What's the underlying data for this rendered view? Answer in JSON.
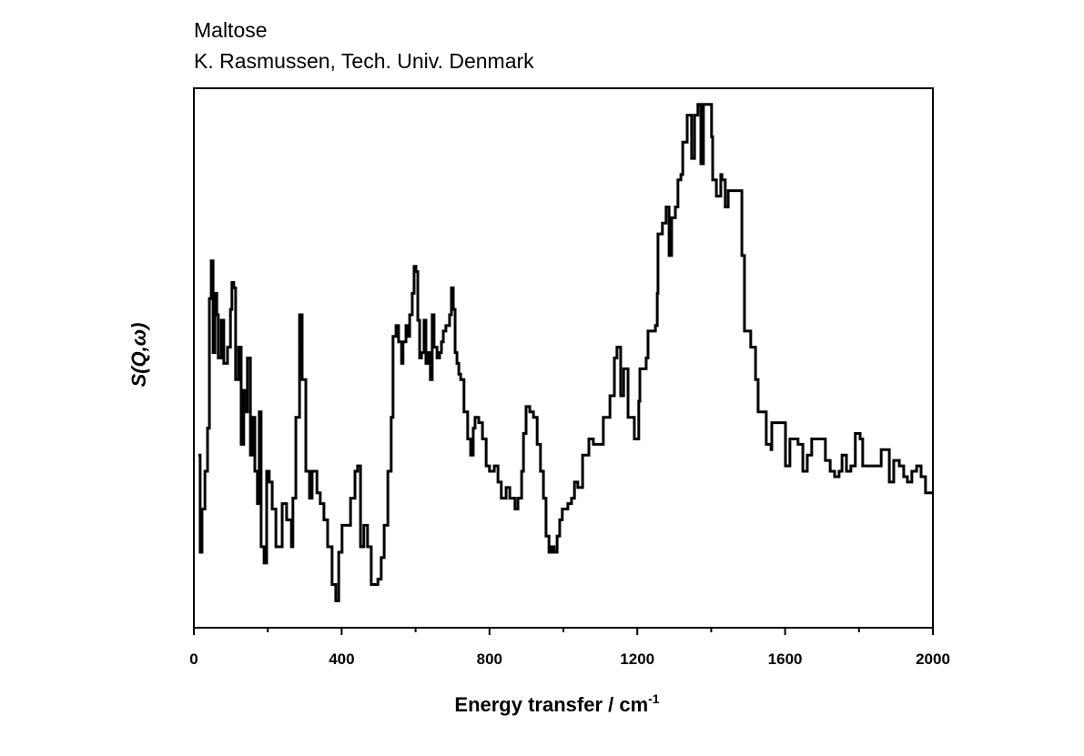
{
  "chart_data": {
    "type": "line",
    "title": "Maltose",
    "subtitle": "K. Rasmussen, Tech. Univ. Denmark",
    "xlabel": "Energy transfer / cm",
    "xlabel_superscript": "-1",
    "ylabel": "S(Q,ω)",
    "xlim": [
      0,
      2000
    ],
    "ylim": [
      0,
      100
    ],
    "xticks": [
      "0",
      "400",
      "800",
      "1200",
      "1600",
      "2000"
    ],
    "xtick_values": [
      0,
      400,
      800,
      1200,
      1600,
      2000
    ],
    "minor_xtick_values": [
      200,
      600,
      1000,
      1400,
      1800
    ],
    "grid": false,
    "series": [
      {
        "name": "Maltose",
        "color": "#000000",
        "points": [
          [
            12,
            32
          ],
          [
            17,
            14
          ],
          [
            22,
            22
          ],
          [
            30,
            29
          ],
          [
            37,
            37
          ],
          [
            42,
            61
          ],
          [
            47,
            68
          ],
          [
            52,
            51
          ],
          [
            57,
            62
          ],
          [
            62,
            58
          ],
          [
            66,
            50
          ],
          [
            74,
            57
          ],
          [
            81,
            49
          ],
          [
            91,
            52
          ],
          [
            99,
            59
          ],
          [
            103,
            64
          ],
          [
            108,
            63
          ],
          [
            113,
            46
          ],
          [
            121,
            52
          ],
          [
            128,
            34
          ],
          [
            135,
            44
          ],
          [
            140,
            40
          ],
          [
            145,
            50
          ],
          [
            153,
            32
          ],
          [
            160,
            39
          ],
          [
            165,
            29
          ],
          [
            172,
            23
          ],
          [
            177,
            40
          ],
          [
            182,
            15
          ],
          [
            190,
            12
          ],
          [
            197,
            29
          ],
          [
            204,
            27
          ],
          [
            212,
            22
          ],
          [
            222,
            15
          ],
          [
            229,
            15
          ],
          [
            239,
            23
          ],
          [
            251,
            20
          ],
          [
            264,
            15
          ],
          [
            268,
            24
          ],
          [
            276,
            39
          ],
          [
            286,
            58
          ],
          [
            293,
            46
          ],
          [
            303,
            29
          ],
          [
            313,
            24
          ],
          [
            320,
            29
          ],
          [
            333,
            25
          ],
          [
            342,
            23
          ],
          [
            352,
            20
          ],
          [
            362,
            15
          ],
          [
            374,
            8
          ],
          [
            384,
            5
          ],
          [
            392,
            14
          ],
          [
            401,
            19
          ],
          [
            411,
            19
          ],
          [
            424,
            24
          ],
          [
            436,
            29
          ],
          [
            443,
            30
          ],
          [
            451,
            15
          ],
          [
            460,
            19
          ],
          [
            470,
            15
          ],
          [
            480,
            8
          ],
          [
            490,
            8
          ],
          [
            498,
            9
          ],
          [
            507,
            13
          ],
          [
            515,
            19
          ],
          [
            525,
            29
          ],
          [
            534,
            39
          ],
          [
            539,
            54
          ],
          [
            547,
            56
          ],
          [
            554,
            53
          ],
          [
            562,
            49
          ],
          [
            566,
            53
          ],
          [
            574,
            56
          ],
          [
            579,
            54
          ],
          [
            584,
            58
          ],
          [
            591,
            62
          ],
          [
            596,
            67
          ],
          [
            601,
            66
          ],
          [
            606,
            57
          ],
          [
            611,
            50
          ],
          [
            616,
            51
          ],
          [
            623,
            57
          ],
          [
            628,
            49
          ],
          [
            633,
            51
          ],
          [
            640,
            46
          ],
          [
            645,
            58
          ],
          [
            650,
            52
          ],
          [
            658,
            50
          ],
          [
            665,
            51
          ],
          [
            670,
            53
          ],
          [
            675,
            55
          ],
          [
            682,
            56
          ],
          [
            692,
            58
          ],
          [
            697,
            63
          ],
          [
            702,
            59
          ],
          [
            707,
            51
          ],
          [
            712,
            49
          ],
          [
            717,
            47
          ],
          [
            722,
            46
          ],
          [
            731,
            40
          ],
          [
            741,
            35
          ],
          [
            749,
            32
          ],
          [
            756,
            37
          ],
          [
            761,
            39
          ],
          [
            771,
            38
          ],
          [
            781,
            35
          ],
          [
            791,
            30
          ],
          [
            800,
            29
          ],
          [
            813,
            30
          ],
          [
            823,
            27
          ],
          [
            832,
            24
          ],
          [
            845,
            26
          ],
          [
            855,
            24
          ],
          [
            862,
            24
          ],
          [
            869,
            22
          ],
          [
            877,
            24
          ],
          [
            887,
            29
          ],
          [
            892,
            36
          ],
          [
            899,
            41
          ],
          [
            909,
            40
          ],
          [
            919,
            39
          ],
          [
            929,
            34
          ],
          [
            938,
            29
          ],
          [
            946,
            24
          ],
          [
            953,
            17
          ],
          [
            961,
            14
          ],
          [
            968,
            15
          ],
          [
            975,
            14
          ],
          [
            983,
            17
          ],
          [
            990,
            20
          ],
          [
            997,
            22
          ],
          [
            1012,
            23
          ],
          [
            1022,
            24
          ],
          [
            1030,
            27
          ],
          [
            1039,
            26
          ],
          [
            1052,
            32
          ],
          [
            1069,
            35
          ],
          [
            1081,
            34
          ],
          [
            1108,
            39
          ],
          [
            1126,
            43
          ],
          [
            1138,
            50
          ],
          [
            1145,
            52
          ],
          [
            1155,
            43
          ],
          [
            1163,
            48
          ],
          [
            1175,
            39
          ],
          [
            1192,
            35
          ],
          [
            1204,
            42
          ],
          [
            1207,
            48
          ],
          [
            1224,
            50
          ],
          [
            1229,
            55
          ],
          [
            1249,
            56
          ],
          [
            1254,
            62
          ],
          [
            1256,
            73
          ],
          [
            1268,
            75
          ],
          [
            1278,
            78
          ],
          [
            1286,
            69
          ],
          [
            1293,
            76
          ],
          [
            1303,
            78
          ],
          [
            1310,
            83
          ],
          [
            1318,
            84
          ],
          [
            1323,
            90
          ],
          [
            1335,
            95
          ],
          [
            1347,
            87
          ],
          [
            1355,
            95
          ],
          [
            1364,
            97
          ],
          [
            1372,
            86
          ],
          [
            1379,
            97
          ],
          [
            1392,
            97
          ],
          [
            1401,
            91
          ],
          [
            1404,
            83
          ],
          [
            1414,
            80
          ],
          [
            1426,
            84
          ],
          [
            1429,
            83
          ],
          [
            1438,
            78
          ],
          [
            1446,
            81
          ],
          [
            1470,
            81
          ],
          [
            1483,
            69
          ],
          [
            1490,
            55
          ],
          [
            1507,
            52
          ],
          [
            1520,
            46
          ],
          [
            1527,
            40
          ],
          [
            1549,
            34
          ],
          [
            1562,
            33
          ],
          [
            1564,
            38
          ],
          [
            1594,
            38
          ],
          [
            1601,
            30
          ],
          [
            1613,
            35
          ],
          [
            1635,
            34
          ],
          [
            1648,
            29
          ],
          [
            1660,
            32
          ],
          [
            1672,
            35
          ],
          [
            1699,
            35
          ],
          [
            1709,
            31
          ],
          [
            1722,
            29
          ],
          [
            1734,
            28
          ],
          [
            1746,
            29
          ],
          [
            1754,
            32
          ],
          [
            1766,
            29
          ],
          [
            1778,
            30
          ],
          [
            1790,
            36
          ],
          [
            1803,
            35
          ],
          [
            1810,
            30
          ],
          [
            1833,
            30
          ],
          [
            1852,
            30
          ],
          [
            1860,
            33
          ],
          [
            1872,
            33
          ],
          [
            1882,
            27
          ],
          [
            1894,
            31
          ],
          [
            1909,
            30
          ],
          [
            1921,
            28
          ],
          [
            1931,
            27
          ],
          [
            1943,
            29
          ],
          [
            1956,
            30
          ],
          [
            1968,
            28
          ],
          [
            1980,
            25
          ],
          [
            1995,
            25
          ],
          [
            2000,
            25
          ]
        ]
      }
    ]
  }
}
